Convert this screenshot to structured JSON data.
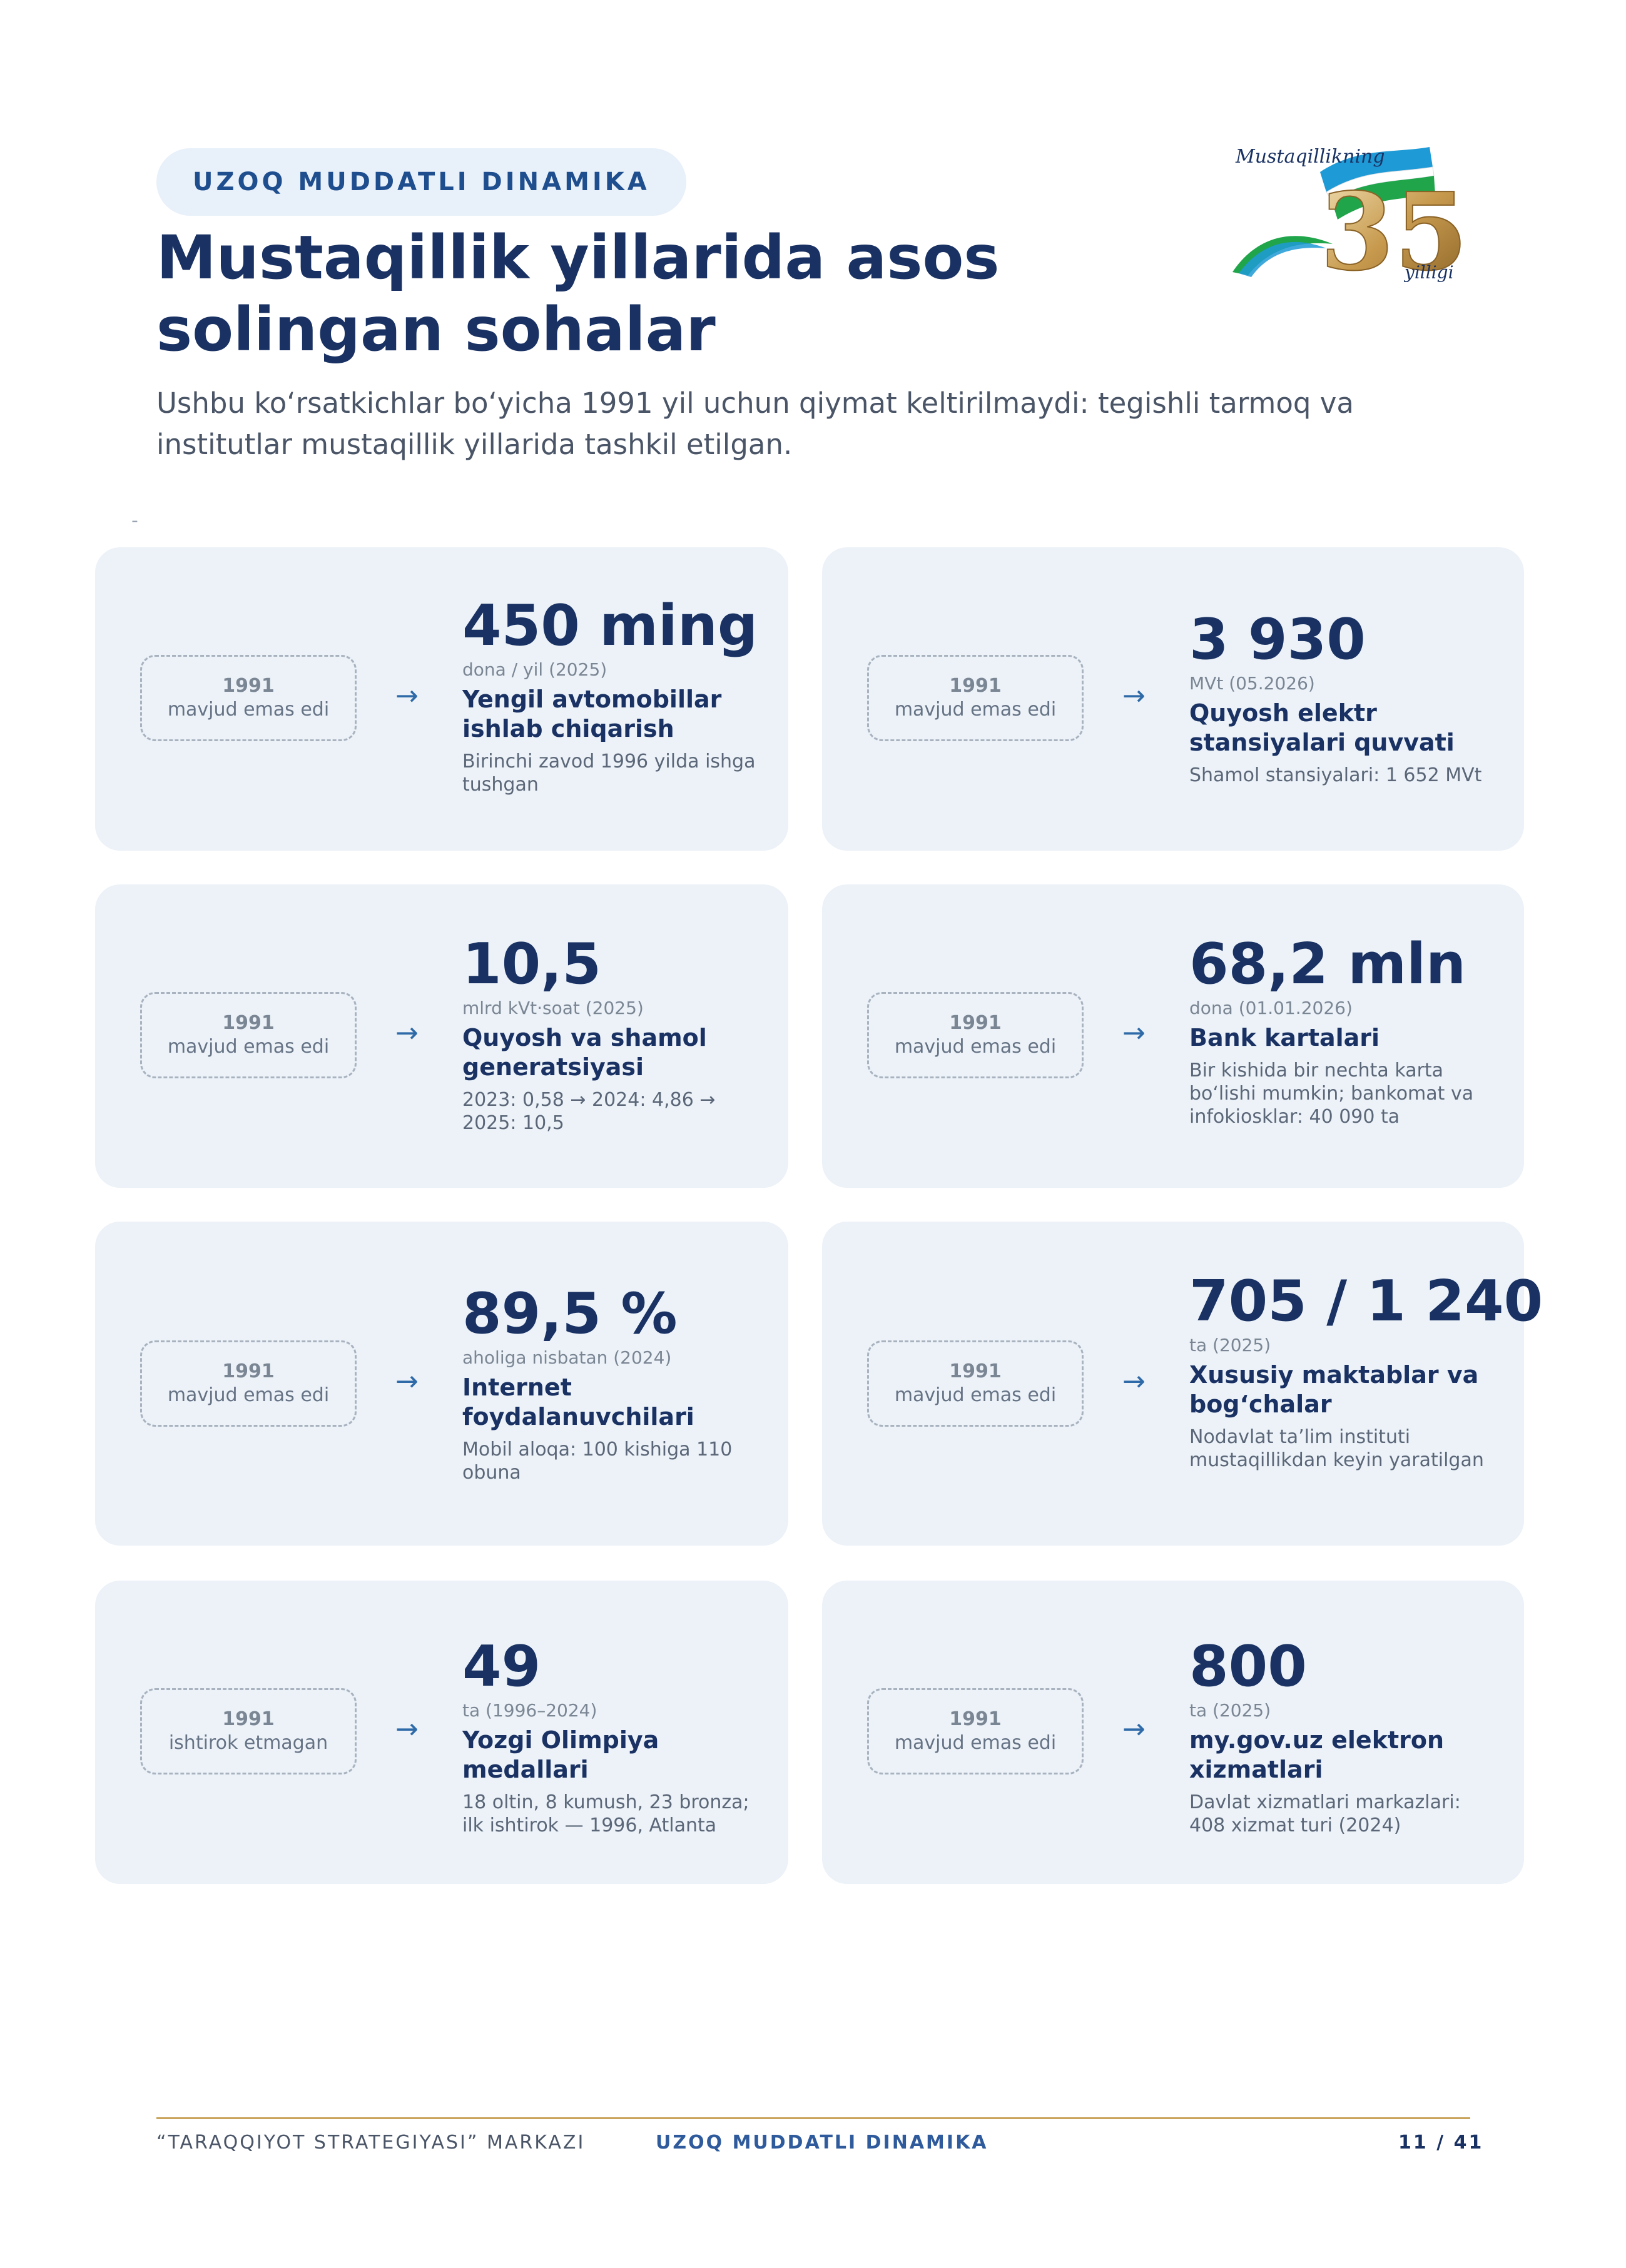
{
  "header": {
    "section_label": "UZOQ MUDDATLI DINAMIKA",
    "title": "Mustaqillik yillarida asos solingan sohalar",
    "subtitle": "Ushbu ko‘rsatkichlar bo‘yicha 1991 yil uchun qiymat keltirilmaydi: tegishli tarmoq va institutlar mustaqillik yillarida tashkil etilgan."
  },
  "logo": {
    "top_text": "Mustaqillikning",
    "number": "35",
    "bottom_text": "yilligi"
  },
  "stray_mark": "-",
  "cards": [
    {
      "year": "1991",
      "status": "mavjud emas edi",
      "arrow": "→",
      "value": "450 ming",
      "unit": "dona / yil (2025)",
      "label": "Yengil avtomobillar ishlab chiqarish",
      "note": "Birinchi zavod 1996 yilda ishga tushgan"
    },
    {
      "year": "1991",
      "status": "mavjud emas edi",
      "arrow": "→",
      "value": "3 930",
      "unit": "MVt (05.2026)",
      "label": "Quyosh elektr stansiyalari quvvati",
      "note": "Shamol stansiyalari: 1 652 MVt"
    },
    {
      "year": "1991",
      "status": "mavjud emas edi",
      "arrow": "→",
      "value": "10,5",
      "unit": "mlrd kVt·soat (2025)",
      "label": "Quyosh va shamol generatsiyasi",
      "note": "2023: 0,58 → 2024: 4,86 → 2025: 10,5"
    },
    {
      "year": "1991",
      "status": "mavjud emas edi",
      "arrow": "→",
      "value": "68,2 mln",
      "unit": "dona (01.01.2026)",
      "label": "Bank kartalari",
      "note": "Bir kishida bir nechta karta bo‘lishi mumkin; bankomat va infokiosklar: 40 090 ta"
    },
    {
      "year": "1991",
      "status": "mavjud emas edi",
      "arrow": "→",
      "value": "89,5 %",
      "unit": "aholiga nisbatan (2024)",
      "label": "Internet foydalanuvchilari",
      "note": "Mobil aloqa: 100 kishiga 110 obuna"
    },
    {
      "year": "1991",
      "status": "mavjud emas edi",
      "arrow": "→",
      "value": "705 / 1 240",
      "unit": "ta (2025)",
      "label": "Xususiy maktablar va bog‘chalar",
      "note": "Nodavlat ta’lim instituti mustaqillikdan keyin yaratilgan"
    },
    {
      "year": "1991",
      "status": "ishtirok etmagan",
      "arrow": "→",
      "value": "49",
      "unit": "ta (1996–2024)",
      "label": "Yozgi Olimpiya medallari",
      "note": "18 oltin, 8 kumush, 23 bronza; ilk ishtirok — 1996, Atlanta"
    },
    {
      "year": "1991",
      "status": "mavjud emas edi",
      "arrow": "→",
      "value": "800",
      "unit": "ta (2025)",
      "label": "my.gov.uz elektron xizmatlari",
      "note": "Davlat xizmatlari markazlari: 408 xizmat turi (2024)"
    }
  ],
  "footer": {
    "left": "“TARAQQIYOT STRATEGIYASI” MARKAZI",
    "center": "UZOQ MUDDATLI DINAMIKA",
    "page": "11 / 41"
  },
  "colors": {
    "navy": "#1a3263",
    "accent_blue": "#2f5b9c",
    "card_bg": "#ecf2f8",
    "gold_rule": "#c9a45a"
  }
}
